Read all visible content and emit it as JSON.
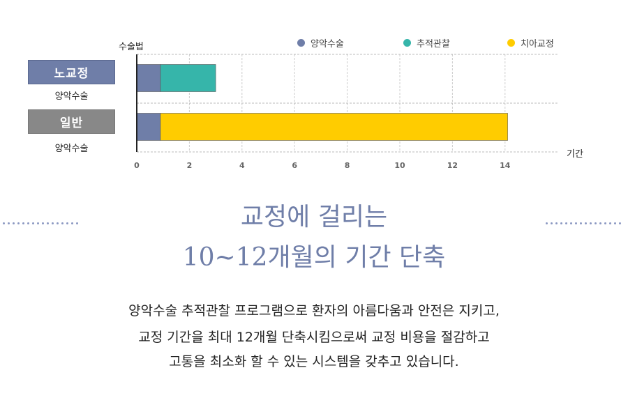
{
  "chart_data": {
    "type": "bar",
    "orientation": "horizontal",
    "stacked": true,
    "ylabel": "수술법",
    "xlabel": "기간",
    "xlim": [
      0,
      14
    ],
    "xticks": [
      0,
      2,
      4,
      6,
      8,
      10,
      12,
      14
    ],
    "grid": true,
    "legend_position": "top-right",
    "legend": [
      {
        "name": "양악수술",
        "color": "#6f7ea8"
      },
      {
        "name": "추적관찰",
        "color": "#36b5aa"
      },
      {
        "name": "치아교정",
        "color": "#ffcc00"
      }
    ],
    "categories": [
      {
        "label": "노교정",
        "sublabel": "양악수술",
        "badge_color": "#6f7ea8"
      },
      {
        "label": "일반",
        "sublabel": "양악수술",
        "badge_color": "#888888"
      }
    ],
    "series": [
      {
        "name": "양악수술",
        "values": [
          0.9,
          0.9
        ]
      },
      {
        "name": "추적관찰",
        "values": [
          2.1,
          0
        ]
      },
      {
        "name": "치아교정",
        "values": [
          0,
          13.2
        ]
      }
    ]
  },
  "heading": {
    "line1": "교정에 걸리는",
    "line2": "10~12개월의 기간 단축"
  },
  "body": {
    "line1": "양악수술 추적관찰 프로그램으로 환자의 아름다움과 안전은 지키고,",
    "line2": "교정 기간을 최대 12개월 단축시킴으로써 교정 비용을 절감하고",
    "line3": "고통을 최소화 할 수 있는 시스템을 갖추고 있습니다."
  }
}
